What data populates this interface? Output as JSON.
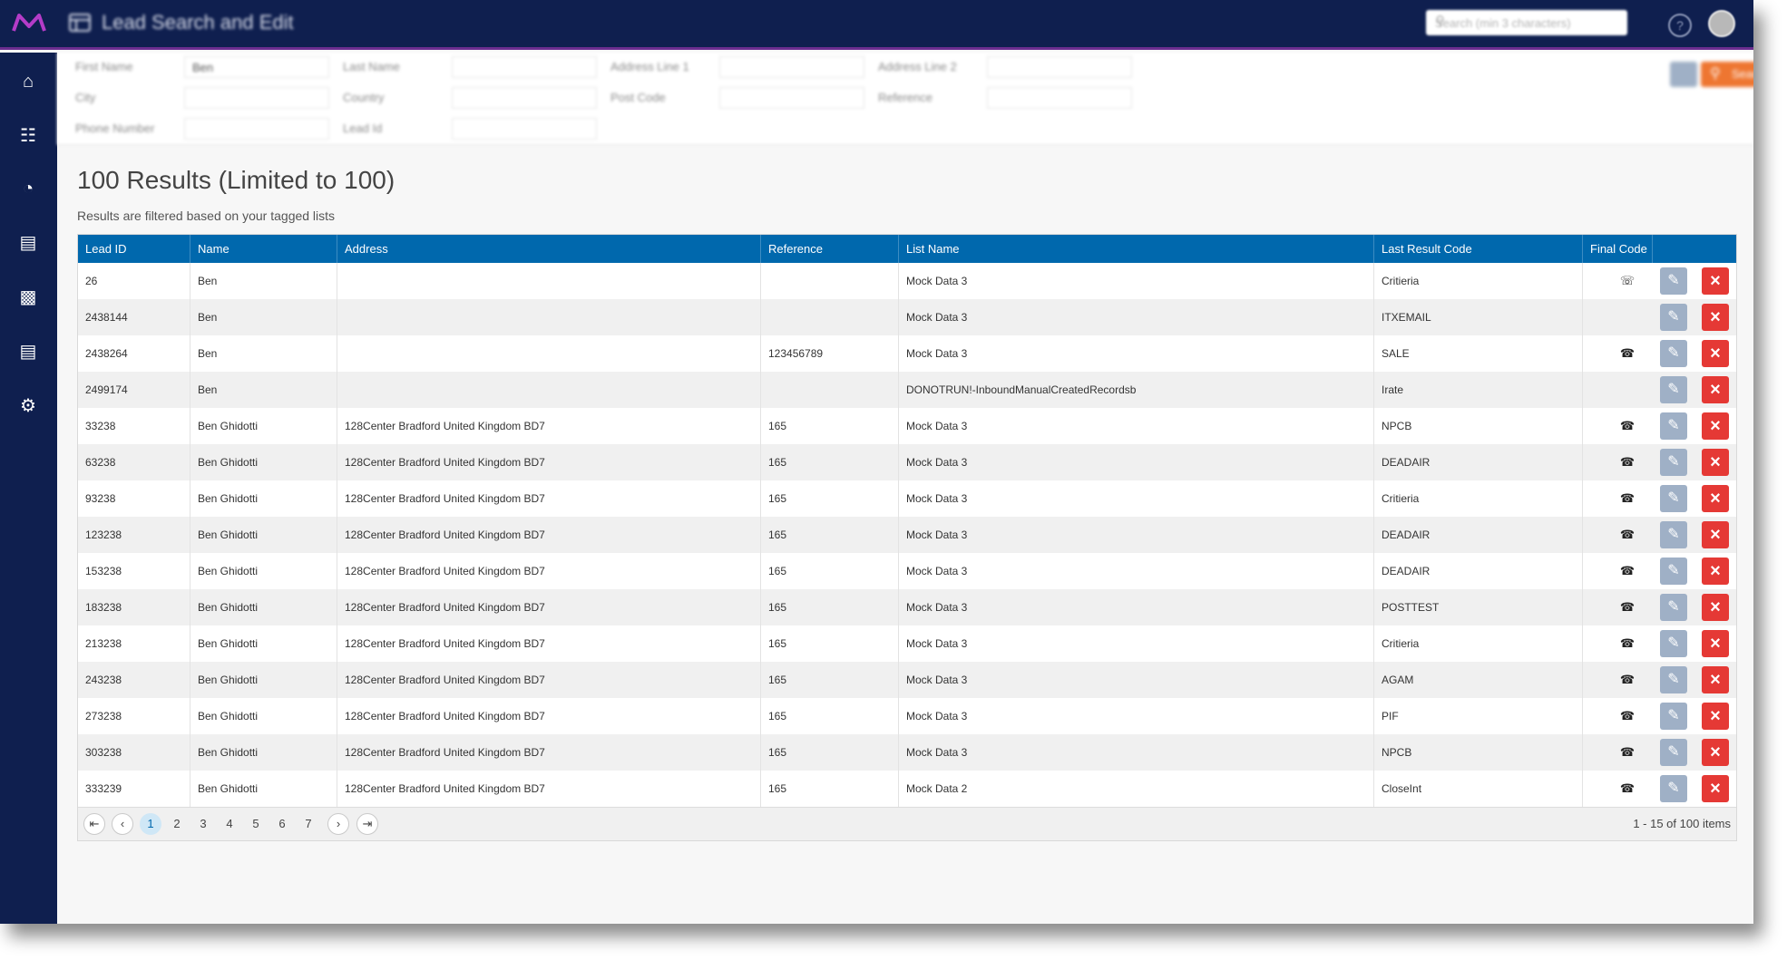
{
  "app": {
    "title": "Lead Search and Edit",
    "global_search_placeholder": "Search (min 3 characters)",
    "colors": {
      "topbar": "#0f1f4f",
      "accent": "#6b2d8f",
      "grid_header": "#0068ad",
      "search_button": "#ee7631",
      "delete": "#e53935",
      "edit": "#9fb0c6"
    }
  },
  "sidebar": {
    "icons": [
      "home-icon",
      "list-icon",
      "dashboard-icon",
      "database-icon",
      "lock-icon",
      "document-icon",
      "settings-icon"
    ]
  },
  "filters": {
    "first_name_label": "First Name",
    "first_name_value": "Ben",
    "last_name_label": "Last Name",
    "address1_label": "Address Line 1",
    "address2_label": "Address Line 2",
    "city_label": "City",
    "country_label": "Country",
    "postcode_label": "Post Code",
    "reference_label": "Reference",
    "phone_label": "Phone Number",
    "leadid_label": "Lead Id",
    "search_label": "Search"
  },
  "results": {
    "title": "100 Results (Limited to 100)",
    "subtitle": "Results are filtered based on your tagged lists"
  },
  "grid": {
    "columns": [
      "Lead ID",
      "Name",
      "Address",
      "Reference",
      "List Name",
      "Last Result Code",
      "Final Code"
    ],
    "rows": [
      {
        "lead_id": "26",
        "name": "Ben",
        "address": "",
        "reference": "",
        "list_name": "Mock Data 3",
        "last_result_code": "Critieria",
        "final_code": "☏"
      },
      {
        "lead_id": "2438144",
        "name": "Ben",
        "address": "",
        "reference": "",
        "list_name": "Mock Data 3",
        "last_result_code": "ITXEMAIL",
        "final_code": ""
      },
      {
        "lead_id": "2438264",
        "name": "Ben",
        "address": "",
        "reference": "123456789",
        "list_name": "Mock Data 3",
        "last_result_code": "SALE",
        "final_code": "☎"
      },
      {
        "lead_id": "2499174",
        "name": "Ben",
        "address": "",
        "reference": "",
        "list_name": "DONOTRUN!-InboundManualCreatedRecordsb",
        "last_result_code": "Irate",
        "final_code": ""
      },
      {
        "lead_id": "33238",
        "name": "Ben Ghidotti",
        "address": "128Center Bradford United Kingdom BD7",
        "reference": "165",
        "list_name": "Mock Data 3",
        "last_result_code": "NPCB",
        "final_code": "☎"
      },
      {
        "lead_id": "63238",
        "name": "Ben Ghidotti",
        "address": "128Center Bradford United Kingdom BD7",
        "reference": "165",
        "list_name": "Mock Data 3",
        "last_result_code": "DEADAIR",
        "final_code": "☎"
      },
      {
        "lead_id": "93238",
        "name": "Ben Ghidotti",
        "address": "128Center Bradford United Kingdom BD7",
        "reference": "165",
        "list_name": "Mock Data 3",
        "last_result_code": "Critieria",
        "final_code": "☎"
      },
      {
        "lead_id": "123238",
        "name": "Ben Ghidotti",
        "address": "128Center Bradford United Kingdom BD7",
        "reference": "165",
        "list_name": "Mock Data 3",
        "last_result_code": "DEADAIR",
        "final_code": "☎"
      },
      {
        "lead_id": "153238",
        "name": "Ben Ghidotti",
        "address": "128Center Bradford United Kingdom BD7",
        "reference": "165",
        "list_name": "Mock Data 3",
        "last_result_code": "DEADAIR",
        "final_code": "☎"
      },
      {
        "lead_id": "183238",
        "name": "Ben Ghidotti",
        "address": "128Center Bradford United Kingdom BD7",
        "reference": "165",
        "list_name": "Mock Data 3",
        "last_result_code": "POSTTEST",
        "final_code": "☎"
      },
      {
        "lead_id": "213238",
        "name": "Ben Ghidotti",
        "address": "128Center Bradford United Kingdom BD7",
        "reference": "165",
        "list_name": "Mock Data 3",
        "last_result_code": "Critieria",
        "final_code": "☎"
      },
      {
        "lead_id": "243238",
        "name": "Ben Ghidotti",
        "address": "128Center Bradford United Kingdom BD7",
        "reference": "165",
        "list_name": "Mock Data 3",
        "last_result_code": "AGAM",
        "final_code": "☎"
      },
      {
        "lead_id": "273238",
        "name": "Ben Ghidotti",
        "address": "128Center Bradford United Kingdom BD7",
        "reference": "165",
        "list_name": "Mock Data 3",
        "last_result_code": "PIF",
        "final_code": "☎"
      },
      {
        "lead_id": "303238",
        "name": "Ben Ghidotti",
        "address": "128Center Bradford United Kingdom BD7",
        "reference": "165",
        "list_name": "Mock Data 3",
        "last_result_code": "NPCB",
        "final_code": "☎"
      },
      {
        "lead_id": "333239",
        "name": "Ben Ghidotti",
        "address": "128Center Bradford United Kingdom BD7",
        "reference": "165",
        "list_name": "Mock Data 2",
        "last_result_code": "CloseInt",
        "final_code": "☎"
      }
    ]
  },
  "pager": {
    "pages": [
      "1",
      "2",
      "3",
      "4",
      "5",
      "6",
      "7"
    ],
    "current_page": "1",
    "info": "1 - 15 of 100 items"
  }
}
